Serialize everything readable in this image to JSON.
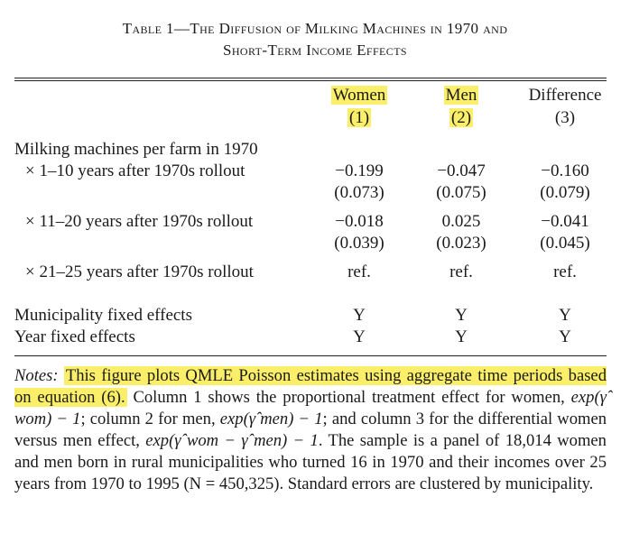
{
  "table": {
    "title_line1": "Table 1—The Diffusion of Milking Machines in 1970 and",
    "title_line2": "Short-Term Income Effects",
    "columns": [
      {
        "name": "Women",
        "num": "(1)"
      },
      {
        "name": "Men",
        "num": "(2)"
      },
      {
        "name": "Difference",
        "num": "(3)"
      }
    ],
    "section_label": "Milking machines per farm in 1970",
    "rows": [
      {
        "label": "× 1–10 years after 1970s rollout",
        "coef": [
          "−0.199",
          "−0.047",
          "−0.160"
        ],
        "se": [
          "(0.073)",
          "(0.075)",
          "(0.079)"
        ]
      },
      {
        "label": "× 11–20 years after 1970s rollout",
        "coef": [
          "−0.018",
          "0.025",
          "−0.041"
        ],
        "se": [
          "(0.039)",
          "(0.023)",
          "(0.045)"
        ]
      },
      {
        "label": "× 21–25 years after 1970s rollout",
        "coef": [
          "ref.",
          "ref.",
          "ref."
        ]
      }
    ],
    "fixed_effects": [
      {
        "label": "Municipality fixed effects",
        "values": [
          "Y",
          "Y",
          "Y"
        ]
      },
      {
        "label": "Year fixed effects",
        "values": [
          "Y",
          "Y",
          "Y"
        ]
      }
    ]
  },
  "notes": {
    "prefix": "Notes:",
    "highlighted": "This figure plots QMLE Poisson estimates using aggregate time periods based on equation (6).",
    "text_a": "Column 1 shows the proportional treatment effect for women,",
    "formula_women": "exp(γ̂ wom) − 1",
    "text_b": "; column 2 for men,",
    "formula_men": "exp(γ̂ men) − 1",
    "text_c": "; and column 3 for the differential women versus men effect,",
    "formula_diff": "exp(γ̂ wom − γ̂ men) − 1",
    "text_d": ". The sample is a panel of 18,014 women and men born in rural municipalities who turned 16 in 1970 and their incomes over 25 years from 1970 to 1995 (N = 450,325). Standard errors are clustered by municipality."
  },
  "highlight_color": "#fbef6a"
}
